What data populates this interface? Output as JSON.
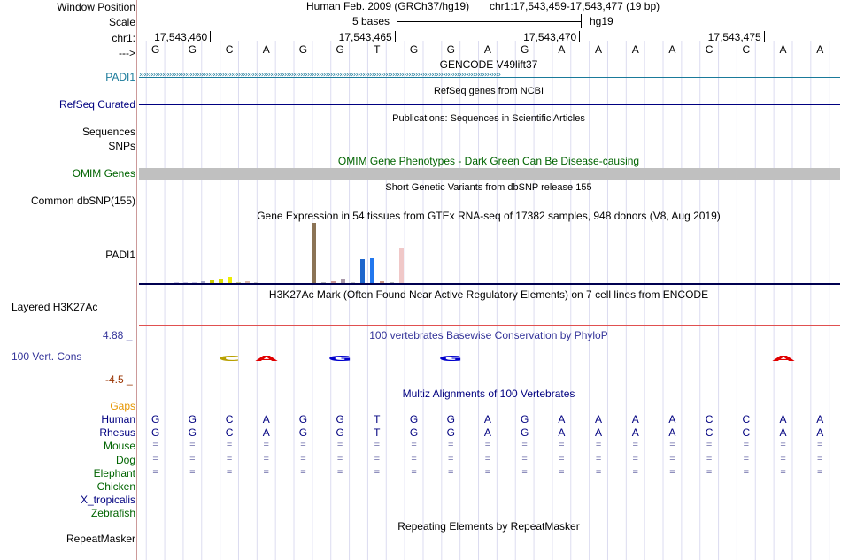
{
  "header": {
    "window_position_label": "Window Position",
    "assembly": "Human Feb. 2009 (GRCh37/hg19)",
    "position_text": "chr1:17,543,459-17,543,477 (19 bp)",
    "scale_label": "Scale",
    "scale_bar_text": "5 bases",
    "scale_db": "hg19",
    "chrom_label": "chr1:",
    "coords": [
      "17,543,460",
      "17,543,465",
      "17,543,470",
      "17,543,475"
    ],
    "strand_label": "--->",
    "bases": [
      "G",
      "G",
      "C",
      "A",
      "G",
      "G",
      "T",
      "G",
      "G",
      "A",
      "G",
      "A",
      "A",
      "A",
      "A",
      "C",
      "C",
      "A",
      "A"
    ]
  },
  "tracks": {
    "gencode_title": "GENCODE V49lift37",
    "gencode_gene": "PADI1",
    "refseq_title": "RefSeq genes from NCBI",
    "refseq_label": "RefSeq Curated",
    "publications_title": "Publications: Sequences in Scientific Articles",
    "sequences_label": "Sequences",
    "snps_label": "SNPs",
    "omim_title": "OMIM Gene Phenotypes - Dark Green Can Be Disease-causing",
    "omim_label": "OMIM Genes",
    "dbsnp_title": "Short Genetic Variants from dbSNP release 155",
    "dbsnp_label": "Common dbSNP(155)",
    "gtex_title": "Gene Expression in 54 tissues from GTEx RNA-seq of 17382 samples, 948 donors (V8, Aug 2019)",
    "gtex_label": "PADI1",
    "h3k27ac_title": "H3K27Ac Mark (Often Found Near Active Regulatory Elements) on 7 cell lines from ENCODE",
    "h3k27ac_label": "Layered H3K27Ac",
    "phylop_title": "100 vertebrates Basewise Conservation by PhyloP",
    "phylop_label": "100 Vert. Cons",
    "phylop_max": "4.88 _",
    "phylop_min": "-4.5 _",
    "multiz_title": "Multiz Alignments of 100 Vertebrates",
    "gaps_label": "Gaps",
    "species": [
      {
        "name": "Human",
        "color": "#000080",
        "row": "bases"
      },
      {
        "name": "Rhesus",
        "color": "#000080",
        "row": "bases"
      },
      {
        "name": "Mouse",
        "color": "#006400",
        "row": "equal"
      },
      {
        "name": "Dog",
        "color": "#006400",
        "row": "equal"
      },
      {
        "name": "Elephant",
        "color": "#006400",
        "row": "equal"
      },
      {
        "name": "Chicken",
        "color": "#006400",
        "row": "none"
      },
      {
        "name": "X_tropicalis",
        "color": "#000080",
        "row": "none"
      },
      {
        "name": "Zebrafish",
        "color": "#006400",
        "row": "none"
      }
    ],
    "equal_symbol": "=",
    "repeat_title": "Repeating Elements by RepeatMasker",
    "repeat_label": "RepeatMasker"
  },
  "gtex_bars": [
    {
      "color": "#ccc8e8",
      "value": 3
    },
    {
      "color": "#ccc8e8",
      "value": 3
    },
    {
      "color": "#ccc8e8",
      "value": 3
    },
    {
      "color": "#aaaacc",
      "value": 4
    },
    {
      "color": "#cccc00",
      "value": 6
    },
    {
      "color": "#dddd00",
      "value": 8
    },
    {
      "color": "#eeee00",
      "value": 12
    },
    {
      "color": "#cccc99",
      "value": 3
    },
    {
      "color": "#ddbbaa",
      "value": 4
    },
    {
      "color": "#cccccc",
      "value": 3
    },
    {
      "color": "#8b7355",
      "value": 100
    },
    {
      "color": "#bbbbbb",
      "value": 3
    },
    {
      "color": "#cc9999",
      "value": 5
    },
    {
      "color": "#aa99aa",
      "value": 9
    },
    {
      "color": "#cccccc",
      "value": 3
    },
    {
      "color": "#1e66cc",
      "value": 41
    },
    {
      "color": "#2277ee",
      "value": 42
    },
    {
      "color": "#cc9988",
      "value": 5
    },
    {
      "color": "#bbbbbb",
      "value": 3
    },
    {
      "color": "#f0c8c8",
      "value": 60
    }
  ],
  "cons_letters": [
    {
      "base": "C",
      "col": 2,
      "color": "#b8a000"
    },
    {
      "base": "A",
      "col": 3,
      "color": "#e00000"
    },
    {
      "base": "G",
      "col": 5,
      "color": "#0000cc"
    },
    {
      "base": "G",
      "col": 8,
      "color": "#0000cc"
    },
    {
      "base": "A",
      "col": 17,
      "color": "#e00000"
    }
  ],
  "colors": {
    "label_blue": "#000080",
    "gencode_blue": "#1a7a9a",
    "omim_green": "#006400",
    "phylop_blue": "#333399",
    "gaps_orange": "#e69500",
    "phylop_min_red": "#993300",
    "omim_gray": "#c0c0c0"
  }
}
